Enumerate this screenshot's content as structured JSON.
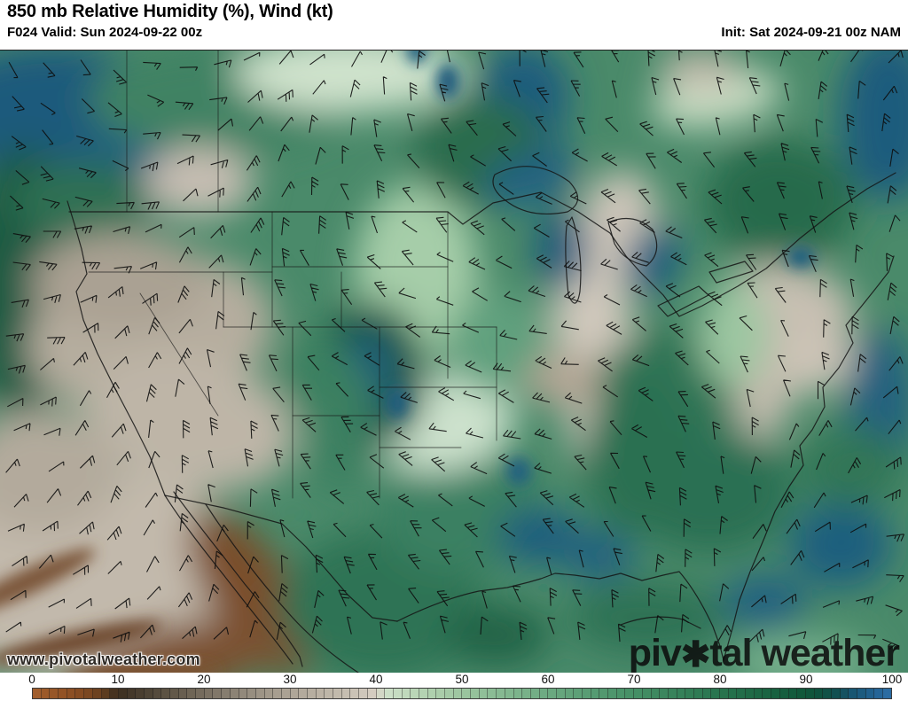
{
  "header": {
    "title": "850 mb Relative Humidity (%), Wind (kt)",
    "valid_label": "F024 Valid: Sun 2024-09-22 00z",
    "init_label": "Init: Sat 2024-09-21 00z NAM"
  },
  "watermarks": {
    "site_url": "www.pivotalweather.com",
    "brand_pre": "piv",
    "brand_star": "✱",
    "brand_post": "tal weather"
  },
  "map": {
    "description": "850 mb relative humidity shaded field with wind barbs over CONUS",
    "base_color": "#4a8a6a",
    "border_color": "#141414",
    "barbs": {
      "color": "#0d0d0d",
      "spacing": 38,
      "shaft": 20
    },
    "region_colors": {
      "saturated_blue": "#1e5b7e",
      "dark_green": "#17573f",
      "mid_green": "#4a8a6a",
      "pale_mint": "#cde2cd",
      "dry_tan": "#c6beb1",
      "very_dry_brown": "#7a4e2a"
    },
    "blobs": [
      [
        60,
        70,
        140,
        75,
        0,
        "#1d5a7c",
        0
      ],
      [
        155,
        135,
        95,
        55,
        -20,
        "#1f5e80",
        0
      ],
      [
        25,
        260,
        70,
        150,
        0,
        "#1a5a42",
        0
      ],
      [
        95,
        170,
        80,
        45,
        0,
        "#2e6f52",
        0
      ],
      [
        250,
        55,
        150,
        60,
        0,
        "#3f8263",
        0
      ],
      [
        395,
        25,
        130,
        45,
        0,
        "#cfe2cc",
        0
      ],
      [
        225,
        148,
        62,
        40,
        0,
        "#c6bdb2",
        0
      ],
      [
        170,
        320,
        140,
        90,
        -10,
        "#b6ad9f",
        0
      ],
      [
        135,
        260,
        100,
        55,
        0,
        "#aaa193",
        0
      ],
      [
        215,
        420,
        120,
        75,
        12,
        "#beb5a7",
        0
      ],
      [
        90,
        590,
        200,
        120,
        0,
        "#c2b9ac",
        0
      ],
      [
        45,
        475,
        90,
        70,
        0,
        "#b3aa9c",
        0
      ],
      [
        282,
        612,
        46,
        108,
        -33,
        "#7a4e2a",
        0
      ],
      [
        195,
        690,
        120,
        42,
        -12,
        "#7c5130",
        0
      ],
      [
        430,
        625,
        115,
        85,
        0,
        "#2f7354",
        0
      ],
      [
        520,
        520,
        95,
        70,
        0,
        "#3a8062",
        0
      ],
      [
        497,
        420,
        85,
        55,
        -8,
        "#cde2cd",
        0
      ],
      [
        470,
        250,
        70,
        100,
        0,
        "#a6cda9",
        0
      ],
      [
        560,
        330,
        55,
        60,
        0,
        "#61a07e",
        0
      ],
      [
        590,
        52,
        52,
        58,
        0,
        "#1e5b7e",
        0
      ],
      [
        607,
        118,
        28,
        42,
        0,
        "#205e80",
        0
      ],
      [
        540,
        115,
        75,
        65,
        0,
        "#2a6c4e",
        0
      ],
      [
        697,
        196,
        44,
        62,
        10,
        "#cdc5b9",
        0
      ],
      [
        668,
        305,
        46,
        80,
        -6,
        "#d0c8bc",
        0
      ],
      [
        688,
        415,
        48,
        62,
        8,
        "#cfc7bb",
        0
      ],
      [
        636,
        372,
        44,
        30,
        0,
        "#b4a594",
        0
      ],
      [
        633,
        225,
        30,
        46,
        0,
        "#1e5a7c",
        0
      ],
      [
        598,
        145,
        55,
        28,
        -15,
        "#226082",
        0
      ],
      [
        737,
        237,
        30,
        42,
        20,
        "#1f5d7f",
        0
      ],
      [
        758,
        375,
        85,
        60,
        0,
        "#2f7355",
        0
      ],
      [
        800,
        498,
        95,
        70,
        0,
        "#2c7052",
        0
      ],
      [
        714,
        458,
        56,
        88,
        0,
        "#2b6f51",
        0
      ],
      [
        888,
        288,
        78,
        46,
        10,
        "#c8bfb2",
        0
      ],
      [
        905,
        356,
        68,
        32,
        -10,
        "#cdc4b7",
        0
      ],
      [
        860,
        382,
        32,
        58,
        0,
        "#c4bbae",
        0
      ],
      [
        1002,
        75,
        55,
        95,
        0,
        "#1e5b7d",
        0
      ],
      [
        993,
        398,
        38,
        85,
        0,
        "#20607f",
        0
      ],
      [
        948,
        558,
        58,
        48,
        0,
        "#1f5e7e",
        0
      ],
      [
        862,
        622,
        48,
        30,
        0,
        "#226081",
        0
      ],
      [
        608,
        548,
        48,
        32,
        0,
        "#1f5d7e",
        0
      ],
      [
        676,
        570,
        40,
        28,
        0,
        "#226080",
        0
      ],
      [
        418,
        368,
        64,
        85,
        0,
        "#17573f",
        0
      ],
      [
        414,
        368,
        32,
        50,
        0,
        "#1e5c7d",
        0
      ],
      [
        360,
        368,
        42,
        46,
        0,
        "#3b8061",
        0
      ],
      [
        390,
        428,
        30,
        75,
        10,
        "#3a7f60",
        0
      ],
      [
        808,
        55,
        75,
        30,
        -10,
        "#c9dcc3",
        0
      ],
      [
        790,
        22,
        48,
        22,
        0,
        "#c2b9ab",
        0
      ],
      [
        880,
        170,
        85,
        70,
        0,
        "#276a4c",
        0
      ],
      [
        828,
        320,
        40,
        60,
        0,
        "#9cc6a1",
        0
      ],
      [
        960,
        470,
        60,
        45,
        0,
        "#337657",
        0
      ],
      [
        730,
        640,
        90,
        40,
        0,
        "#2e7254",
        0
      ],
      [
        905,
        690,
        80,
        30,
        0,
        "#77b08d",
        0
      ],
      [
        560,
        660,
        60,
        35,
        0,
        "#206346",
        0
      ],
      [
        30,
        600,
        85,
        14,
        -25,
        "#7b563a",
        1
      ],
      [
        85,
        668,
        100,
        13,
        -12,
        "#6f4c30",
        1
      ],
      [
        155,
        706,
        90,
        11,
        -4,
        "#7b5535",
        1
      ],
      [
        505,
        35,
        13,
        20,
        0,
        "#1d597b",
        1
      ],
      [
        470,
        0,
        11,
        15,
        0,
        "#1f5b7d",
        1
      ],
      [
        448,
        398,
        12,
        18,
        0,
        "#1d5c7e",
        1
      ],
      [
        903,
        233,
        16,
        12,
        0,
        "#1f5d7f",
        1
      ],
      [
        585,
        475,
        14,
        16,
        0,
        "#226080",
        1
      ]
    ]
  },
  "colorbar": {
    "min": 0,
    "max": 100,
    "cells": 100,
    "unit": "%",
    "ticks": [
      0,
      10,
      20,
      30,
      40,
      50,
      60,
      70,
      80,
      90,
      100
    ],
    "tick_color": "#111111",
    "cell_divider_color": "rgba(25,25,25,0.4)",
    "stops": [
      [
        0,
        "#a3602e"
      ],
      [
        3,
        "#955426"
      ],
      [
        6,
        "#824921"
      ],
      [
        8,
        "#66401f"
      ],
      [
        10,
        "#3c2f20"
      ],
      [
        13,
        "#4b4133"
      ],
      [
        16,
        "#5f5546"
      ],
      [
        20,
        "#786e60"
      ],
      [
        24,
        "#8f8678"
      ],
      [
        28,
        "#a59c8e"
      ],
      [
        32,
        "#b5ac9e"
      ],
      [
        36,
        "#c4bcae"
      ],
      [
        40,
        "#d6cec2"
      ],
      [
        41,
        "#cfe0ca"
      ],
      [
        45,
        "#b7d4b4"
      ],
      [
        50,
        "#9cc6a0"
      ],
      [
        55,
        "#83b890"
      ],
      [
        60,
        "#6caa81"
      ],
      [
        65,
        "#579c73"
      ],
      [
        70,
        "#459066"
      ],
      [
        75,
        "#36825a"
      ],
      [
        80,
        "#28744e"
      ],
      [
        85,
        "#1b6543"
      ],
      [
        90,
        "#10563a"
      ],
      [
        92,
        "#0f5140"
      ],
      [
        94,
        "#135056"
      ],
      [
        95,
        "#16536b"
      ],
      [
        96,
        "#1a5878"
      ],
      [
        97,
        "#1e5d85"
      ],
      [
        98,
        "#226292"
      ],
      [
        99,
        "#27689c"
      ],
      [
        100,
        "#2e70a8"
      ]
    ]
  }
}
